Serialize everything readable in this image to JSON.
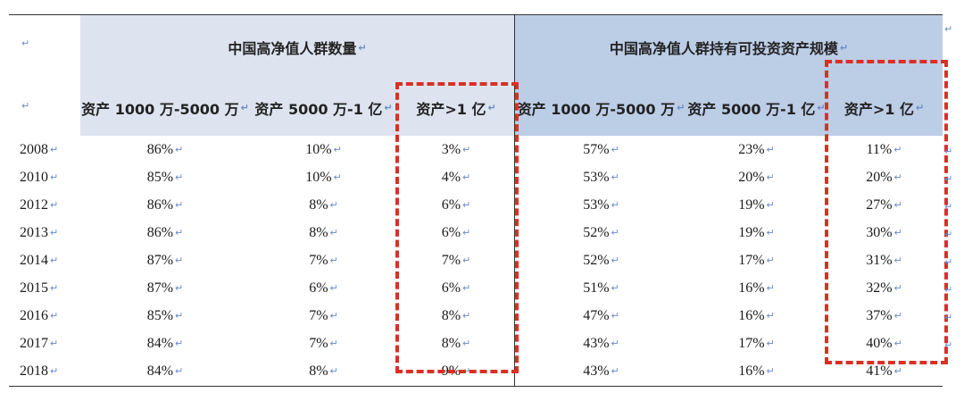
{
  "headers": {
    "group_count": "中国高净值人群数量",
    "group_assets": "中国高净值人群持有可投资资产规模",
    "sub": [
      "资产 1000 万-5000 万",
      "资产 5000 万-1 亿",
      "资产>1 亿",
      "资产 1000 万-5000 万",
      "资产 5000 万-1 亿",
      "资产>1 亿"
    ]
  },
  "rows": [
    {
      "year": "2008",
      "v": [
        "86%",
        "10%",
        "3%",
        "57%",
        "23%",
        "11%"
      ]
    },
    {
      "year": "2010",
      "v": [
        "85%",
        "10%",
        "4%",
        "53%",
        "20%",
        "20%"
      ]
    },
    {
      "year": "2012",
      "v": [
        "86%",
        "8%",
        "6%",
        "53%",
        "19%",
        "27%"
      ]
    },
    {
      "year": "2013",
      "v": [
        "86%",
        "8%",
        "6%",
        "52%",
        "19%",
        "30%"
      ]
    },
    {
      "year": "2014",
      "v": [
        "87%",
        "7%",
        "7%",
        "52%",
        "17%",
        "31%"
      ]
    },
    {
      "year": "2015",
      "v": [
        "87%",
        "6%",
        "6%",
        "51%",
        "16%",
        "32%"
      ]
    },
    {
      "year": "2016",
      "v": [
        "85%",
        "7%",
        "8%",
        "47%",
        "16%",
        "37%"
      ]
    },
    {
      "year": "2017",
      "v": [
        "84%",
        "7%",
        "8%",
        "43%",
        "17%",
        "40%"
      ]
    },
    {
      "year": "2018",
      "v": [
        "84%",
        "8%",
        "9%",
        "43%",
        "16%",
        "41%"
      ]
    }
  ],
  "colors": {
    "header_left_bg": "#dde4ef",
    "header_right_bg": "#bccde6",
    "highlight_dash": "#d93025"
  }
}
